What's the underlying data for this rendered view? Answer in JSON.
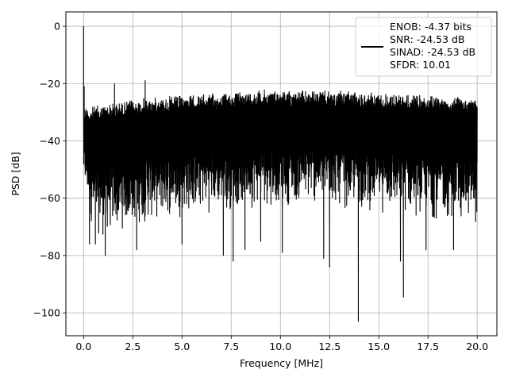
{
  "chart_data": {
    "type": "line",
    "title": "",
    "xlabel": "Frequency [MHz]",
    "ylabel": "PSD [dB]",
    "xlim": [
      -0.9,
      21.0
    ],
    "ylim": [
      -108,
      5
    ],
    "x_ticks": [
      0.0,
      2.5,
      5.0,
      7.5,
      10.0,
      12.5,
      15.0,
      17.5,
      20.0
    ],
    "x_tick_labels": [
      "0.0",
      "2.5",
      "5.0",
      "7.5",
      "10.0",
      "12.5",
      "15.0",
      "17.5",
      "20.0"
    ],
    "y_ticks": [
      0,
      -20,
      -40,
      -60,
      -80,
      -100
    ],
    "y_tick_labels": [
      "0",
      "−20",
      "−40",
      "−60",
      "−80",
      "−100"
    ],
    "grid": true,
    "legend_position": "top-right",
    "series": [
      {
        "name": "ENOB: -4.37 bits\nSNR: -24.53 dB\nSINAD: -24.53 dB\nSFDR: 10.01",
        "color": "#000000",
        "x_range": [
          0.0,
          20.0
        ],
        "dc_peak": {
          "x": 0.0,
          "y": 0
        },
        "upper_envelope": {
          "x": [
            0.0,
            0.3,
            1.0,
            2.0,
            3.0,
            5.0,
            7.5,
            9.0,
            10.0,
            12.5,
            15.0,
            17.5,
            20.0
          ],
          "y": [
            -27,
            -28,
            -27,
            -26,
            -25,
            -24,
            -23,
            -22,
            -22,
            -22.5,
            -23,
            -24,
            -25
          ]
        },
        "lower_envelope": {
          "x": [
            0.0,
            0.5,
            1.0,
            2.0,
            3.0,
            5.0,
            7.5,
            10.0,
            12.5,
            15.0,
            17.5,
            20.0
          ],
          "y": [
            -57,
            -73,
            -75,
            -72,
            -70,
            -67,
            -65,
            -63,
            -64,
            -66,
            -68,
            -70
          ]
        },
        "spikes": [
          {
            "x": 0.03,
            "y": -21
          },
          {
            "x": 1.57,
            "y": -20
          },
          {
            "x": 3.13,
            "y": -19
          },
          {
            "x": 0.3,
            "y": -76
          },
          {
            "x": 0.6,
            "y": -76
          },
          {
            "x": 1.1,
            "y": -80
          },
          {
            "x": 2.7,
            "y": -78
          },
          {
            "x": 5.0,
            "y": -76
          },
          {
            "x": 7.1,
            "y": -80
          },
          {
            "x": 7.6,
            "y": -82
          },
          {
            "x": 8.2,
            "y": -78
          },
          {
            "x": 9.0,
            "y": -75
          },
          {
            "x": 10.1,
            "y": -79
          },
          {
            "x": 12.2,
            "y": -81
          },
          {
            "x": 12.5,
            "y": -84
          },
          {
            "x": 13.96,
            "y": -103
          },
          {
            "x": 16.25,
            "y": -94.5
          },
          {
            "x": 16.1,
            "y": -82
          },
          {
            "x": 17.4,
            "y": -78
          },
          {
            "x": 18.8,
            "y": -78
          }
        ]
      }
    ]
  }
}
